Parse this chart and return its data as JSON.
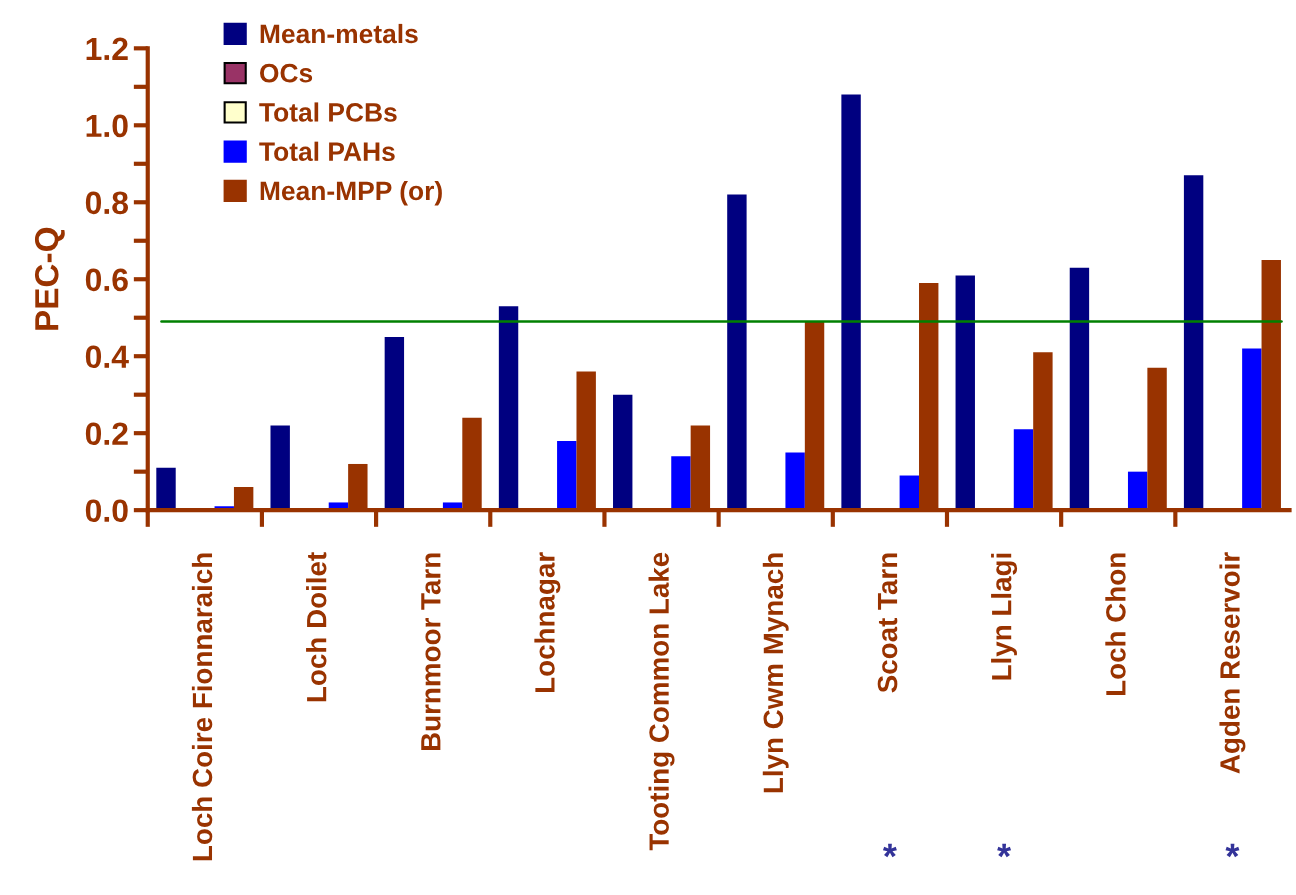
{
  "chart_data": {
    "type": "bar",
    "ylabel": "PEC-Q",
    "categories": [
      "Loch Coire Fionnaraich",
      "Loch Doilet",
      "Burnmoor Tarn",
      "Lochnagar",
      "Tooting Common Lake",
      "Llyn Cwm Mynach",
      "Scoat Tarn",
      "Llyn Llagi",
      "Loch Chon",
      "Agden Reservoir"
    ],
    "series": [
      {
        "name": "Mean-metals",
        "color": "#000080",
        "values": [
          0.11,
          0.22,
          0.45,
          0.53,
          0.3,
          0.82,
          1.08,
          0.61,
          0.63,
          0.87
        ]
      },
      {
        "name": "OCs",
        "color": "#993366",
        "values": [
          null,
          null,
          null,
          null,
          null,
          null,
          null,
          null,
          null,
          null
        ]
      },
      {
        "name": "Total PCBs",
        "color": "#ffffcc",
        "values": [
          null,
          null,
          null,
          null,
          null,
          null,
          null,
          null,
          null,
          null
        ]
      },
      {
        "name": "Total PAHs",
        "color": "#0000ff",
        "values": [
          0.01,
          0.02,
          0.02,
          0.18,
          0.14,
          0.15,
          0.09,
          0.21,
          0.1,
          0.42
        ]
      },
      {
        "name": "Mean-MPP (or)",
        "color": "#993300",
        "values": [
          0.06,
          0.12,
          0.24,
          0.36,
          0.22,
          0.49,
          0.59,
          0.41,
          0.37,
          0.65
        ]
      }
    ],
    "ylim": [
      0,
      1.2
    ],
    "yticks": [
      {
        "value": 0,
        "label": "0.0"
      },
      {
        "value": 0.1,
        "label": null
      },
      0.2,
      {
        "value": 0.3,
        "label": null
      },
      0.4,
      {
        "value": 0.5,
        "label": null
      },
      0.6,
      {
        "value": 0.7,
        "label": null
      },
      0.8,
      {
        "value": 0.9,
        "label": null
      },
      {
        "value": 1.0,
        "label": "1.0"
      },
      {
        "value": 1.1,
        "label": null
      },
      1.2
    ],
    "ref_lines": [
      {
        "axis": "y",
        "value": 0.49,
        "color": "#008000"
      }
    ],
    "annotations": [
      "*",
      "*",
      "*"
    ],
    "legend": "top left",
    "grid": false
  }
}
